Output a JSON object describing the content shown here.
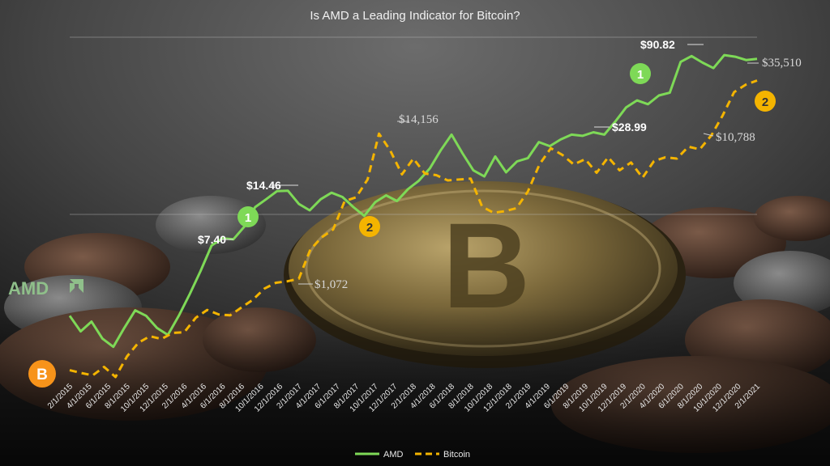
{
  "chart_data": {
    "type": "line",
    "title": "Is AMD a Leading Indicator for Bitcoin?",
    "x_tick_labels": [
      "2/1/2015",
      "4/1/2015",
      "6/1/2015",
      "8/1/2015",
      "10/1/2015",
      "12/1/2015",
      "2/1/2016",
      "4/1/2016",
      "6/1/2016",
      "8/1/2016",
      "10/1/2016",
      "12/1/2016",
      "2/1/2017",
      "4/1/2017",
      "6/1/2017",
      "8/1/2017",
      "10/1/2017",
      "12/1/2017",
      "2/1/2018",
      "4/1/2018",
      "6/1/2018",
      "8/1/2018",
      "10/1/2018",
      "12/1/2018",
      "2/1/2019",
      "4/1/2019",
      "6/1/2019",
      "8/1/2019",
      "10/1/2019",
      "12/1/2019",
      "2/1/2020",
      "4/1/2020",
      "6/1/2020",
      "8/1/2020",
      "10/1/2020",
      "12/1/2020",
      "2/1/2021"
    ],
    "series": [
      {
        "name": "AMD",
        "color": "#7ed957",
        "dash": false,
        "y_scale": "log",
        "y_range": [
          1.5,
          110
        ],
        "values": [
          2.6,
          2.1,
          2.4,
          1.9,
          1.7,
          2.2,
          2.8,
          2.6,
          2.2,
          2.0,
          2.6,
          3.5,
          4.8,
          6.8,
          7.5,
          7.4,
          8.8,
          11.5,
          12.8,
          14.3,
          14.4,
          12.0,
          11.0,
          12.8,
          14.0,
          13.2,
          11.5,
          10.2,
          12.3,
          13.5,
          12.5,
          14.7,
          16.5,
          19.5,
          25.0,
          31.0,
          24.0,
          19.0,
          17.5,
          23.0,
          18.5,
          21.5,
          22.5,
          28.0,
          26.5,
          29.0,
          31.0,
          30.5,
          32.0,
          31.0,
          37.0,
          45.0,
          49.5,
          47.0,
          53.0,
          55.0,
          84.0,
          90.8,
          83.0,
          77.0,
          92.0,
          90.0,
          86.0,
          87.5
        ]
      },
      {
        "name": "Bitcoin",
        "color": "#f4b400",
        "dash": true,
        "y_scale": "log",
        "y_range": [
          150,
          60000
        ],
        "values": [
          236,
          225,
          216,
          250,
          210,
          300,
          380,
          425,
          405,
          450,
          455,
          585,
          670,
          620,
          610,
          700,
          800,
          970,
          1072,
          1100,
          1150,
          1900,
          2350,
          2700,
          4400,
          4700,
          6400,
          14156,
          10500,
          7000,
          9200,
          7100,
          6900,
          6300,
          6400,
          6500,
          4000,
          3600,
          3700,
          3900,
          5200,
          8300,
          11000,
          9800,
          8300,
          9100,
          7200,
          9400,
          7500,
          8600,
          6600,
          8800,
          9400,
          9200,
          11300,
          10788,
          13700,
          19400,
          29000,
          33000,
          35510
        ]
      }
    ],
    "annotations": [
      {
        "text": "$7.40",
        "style": "white-bold"
      },
      {
        "text": "$14.46",
        "style": "white-bold"
      },
      {
        "text": "$28.99",
        "style": "white-bold"
      },
      {
        "text": "$90.82",
        "style": "white-bold"
      },
      {
        "text": "$1,072",
        "style": "gray"
      },
      {
        "text": "$14,156",
        "style": "gray"
      },
      {
        "text": "$10,788",
        "style": "gray"
      },
      {
        "text": "$35,510",
        "style": "gray"
      }
    ],
    "markers": [
      {
        "text": "1",
        "color": "#7ed957"
      },
      {
        "text": "2",
        "color": "#f4b400"
      }
    ],
    "legend": {
      "position": "bottom-center"
    },
    "gridlines": true
  },
  "logos": {
    "amd": "AMD",
    "bitcoin": "B"
  },
  "colors": {
    "amd": "#7ed957",
    "bitcoin": "#f4b400",
    "background": "#3a3a3a"
  }
}
